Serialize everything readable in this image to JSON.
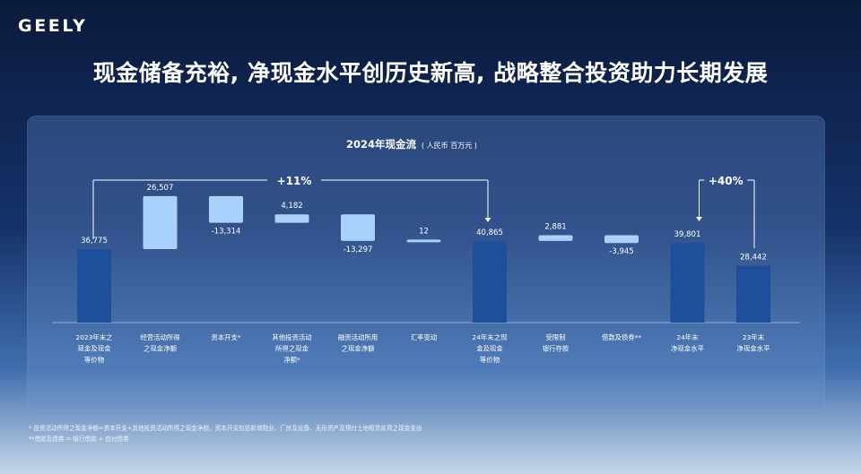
{
  "brand": {
    "logo_text": "GEELY"
  },
  "headline": "现金储备充裕, 净现金水平创历史新高, 战略整合投资助力长期发展",
  "colors": {
    "bar_dark": "#1e4f9a",
    "bar_light": "#a9d1fb",
    "bracket": "#ffffff"
  },
  "chart_data": {
    "type": "bar",
    "subtype": "waterfall",
    "title": "2024年现金流",
    "unit": "( 人民币  百万元 )",
    "categories": [
      [
        "2023年末之",
        "现金及现金",
        "等价物"
      ],
      [
        "经营活动所得",
        "之现金净额"
      ],
      [
        "资本开支*"
      ],
      [
        "其他投资活动",
        "所得之现金",
        "净额*"
      ],
      [
        "融资活动所用",
        "之现金净额"
      ],
      [
        "汇率变动"
      ],
      [
        "24年末之现",
        "金及现金",
        "等价物"
      ],
      [
        "受限制",
        "银行存款"
      ],
      [
        "借款及债券**"
      ],
      [
        "24年末",
        "净现金水平"
      ],
      [
        "23年末",
        "净现金水平"
      ]
    ],
    "values": [
      36775,
      26507,
      -13314,
      4182,
      -13297,
      12,
      40865,
      2881,
      -3945,
      39801,
      28442
    ],
    "value_labels": [
      "36,775",
      "26,507",
      "-13,314",
      "4,182",
      "-13,297",
      "12",
      "40,865",
      "2,881",
      "-3,945",
      "39,801",
      "28,442"
    ],
    "bar_kind": [
      "total",
      "delta",
      "delta",
      "delta",
      "delta",
      "delta",
      "total",
      "delta",
      "delta",
      "total",
      "total"
    ],
    "annotations": [
      {
        "text": "+11%",
        "from": 0,
        "to": 6
      },
      {
        "text": "+40%",
        "from": 10,
        "to": 9
      }
    ]
  },
  "footnotes": [
    "* 投资活动所得之现金净额=资本开支+其他投资活动所得之现金净额，资本开支包括新增物业、厂房及设备、无形资产及预付土地租赁款项之现金支出",
    "**借款及债券 = 银行借款 + 应付债券"
  ]
}
